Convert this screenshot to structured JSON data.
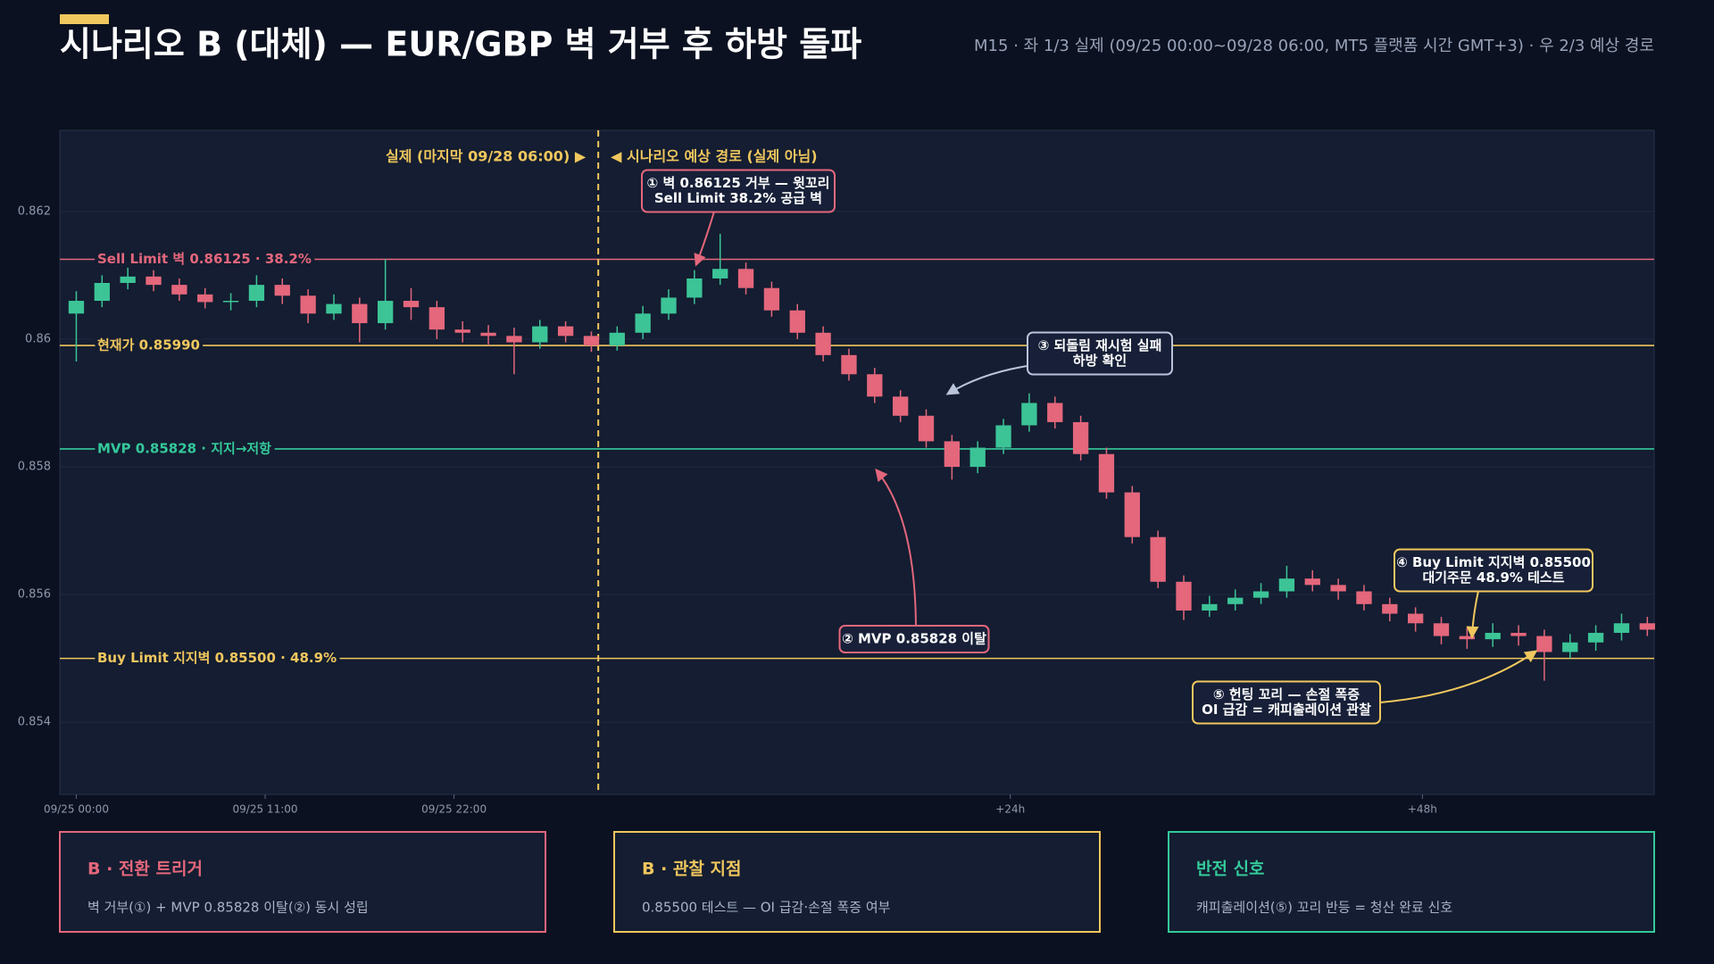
{
  "header": {
    "title": "시나리오 B (대체) — EUR/GBP 벽 거부 후 하방 돌파",
    "subtitle": "M15 · 좌 1/3 실제 (09/25 00:00~09/28 06:00, MT5 플랫폼 시간 GMT+3) · 우 2/3 예상 경로"
  },
  "chart_data": {
    "type": "candlestick",
    "x": [
      0,
      1.5,
      3,
      4.5,
      6,
      7.5,
      9,
      10.5,
      12,
      13.5,
      15,
      16.5,
      18,
      19.5,
      21,
      22.5,
      24,
      25.5,
      27,
      28.5,
      30,
      31.5,
      33,
      34.5,
      36,
      37.5,
      39,
      40.5,
      42,
      43.5,
      45,
      46.5,
      48,
      49.5,
      51,
      52.5,
      54,
      55.5,
      57,
      58.5,
      60,
      61.5,
      63,
      64.5,
      66,
      67.5,
      69,
      70.5,
      72,
      73.5,
      75,
      76.5,
      78,
      79.5,
      81,
      82.5,
      84,
      85.5,
      87,
      88.5,
      90,
      91.5
    ],
    "open": [
      0.8604,
      0.8606,
      0.86088,
      0.86098,
      0.86085,
      0.8607,
      0.86058,
      0.8606,
      0.86085,
      0.86068,
      0.8604,
      0.86055,
      0.86025,
      0.8606,
      0.8605,
      0.86015,
      0.8601,
      0.86005,
      0.85995,
      0.8602,
      0.86005,
      0.8599,
      0.8601,
      0.8604,
      0.86065,
      0.86095,
      0.8611,
      0.8608,
      0.86045,
      0.8601,
      0.85975,
      0.85945,
      0.8591,
      0.8588,
      0.8584,
      0.858,
      0.8583,
      0.85865,
      0.859,
      0.8587,
      0.8582,
      0.8576,
      0.8569,
      0.8562,
      0.85575,
      0.85585,
      0.85595,
      0.85605,
      0.85625,
      0.85615,
      0.85605,
      0.85585,
      0.8557,
      0.85555,
      0.85535,
      0.8553,
      0.8554,
      0.85535,
      0.8551,
      0.85525,
      0.8554,
      0.85555
    ],
    "high": [
      0.86075,
      0.861,
      0.86112,
      0.86108,
      0.86095,
      0.8608,
      0.86072,
      0.861,
      0.86095,
      0.86078,
      0.8607,
      0.86065,
      0.86125,
      0.8608,
      0.8606,
      0.86028,
      0.86022,
      0.86018,
      0.8603,
      0.86028,
      0.86012,
      0.8602,
      0.86052,
      0.86078,
      0.86108,
      0.86165,
      0.8612,
      0.8609,
      0.86055,
      0.8602,
      0.85985,
      0.85955,
      0.8592,
      0.8589,
      0.8585,
      0.8584,
      0.85875,
      0.85915,
      0.8591,
      0.8588,
      0.8583,
      0.8577,
      0.857,
      0.8563,
      0.85598,
      0.85608,
      0.85618,
      0.85645,
      0.85638,
      0.85625,
      0.85615,
      0.85595,
      0.8558,
      0.85565,
      0.85548,
      0.85555,
      0.85552,
      0.85545,
      0.85538,
      0.85552,
      0.8557,
      0.85565
    ],
    "low": [
      0.85965,
      0.8605,
      0.86078,
      0.86075,
      0.8606,
      0.86048,
      0.86045,
      0.8605,
      0.86055,
      0.86025,
      0.8603,
      0.85995,
      0.86015,
      0.8603,
      0.86,
      0.85995,
      0.8599,
      0.85945,
      0.85985,
      0.85995,
      0.8598,
      0.85982,
      0.86,
      0.8603,
      0.86055,
      0.86085,
      0.8607,
      0.86035,
      0.86,
      0.85965,
      0.85935,
      0.859,
      0.8587,
      0.8583,
      0.8578,
      0.8579,
      0.8582,
      0.85855,
      0.8586,
      0.8581,
      0.8575,
      0.8568,
      0.8561,
      0.8556,
      0.85565,
      0.85575,
      0.85585,
      0.85595,
      0.85605,
      0.85592,
      0.85575,
      0.85558,
      0.85542,
      0.85522,
      0.85515,
      0.85518,
      0.8552,
      0.85465,
      0.855,
      0.85512,
      0.85528,
      0.85535
    ],
    "close": [
      0.8606,
      0.86088,
      0.86098,
      0.86085,
      0.8607,
      0.86058,
      0.8606,
      0.86085,
      0.86068,
      0.8604,
      0.86055,
      0.86025,
      0.8606,
      0.8605,
      0.86015,
      0.8601,
      0.86005,
      0.85995,
      0.8602,
      0.86005,
      0.8599,
      0.8601,
      0.8604,
      0.86065,
      0.86095,
      0.8611,
      0.8608,
      0.86045,
      0.8601,
      0.85975,
      0.85945,
      0.8591,
      0.8588,
      0.8584,
      0.858,
      0.8583,
      0.85865,
      0.859,
      0.8587,
      0.8582,
      0.8576,
      0.8569,
      0.8562,
      0.85575,
      0.85585,
      0.85595,
      0.85605,
      0.85625,
      0.85615,
      0.85605,
      0.85585,
      0.8557,
      0.85555,
      0.85535,
      0.8553,
      0.8554,
      0.85535,
      0.8551,
      0.85525,
      0.8554,
      0.85555,
      0.85545
    ],
    "up_color": "#3cc497",
    "down_color": "#e4677c",
    "xlim": [
      -0.96,
      91.9
    ],
    "ylim": [
      0.85287,
      0.86327
    ],
    "xticks": [
      {
        "value": 0,
        "label": "09/25 00:00"
      },
      {
        "value": 11,
        "label": "09/25 11:00"
      },
      {
        "value": 22,
        "label": "09/25 22:00"
      },
      {
        "value": 54.4,
        "label": "+24h"
      },
      {
        "value": 78.4,
        "label": "+48h"
      }
    ],
    "yticks": [
      0.854,
      0.856,
      0.858,
      0.86,
      0.862
    ],
    "grid": true,
    "divider": {
      "x": 30.4,
      "left_label": "실제 (마지막 09/28 06:00) ▶",
      "right_label": "◀ 시나리오 예상 경로 (실제 아님)",
      "color": "#f0c75e"
    },
    "levels": [
      {
        "label": "Sell Limit 벽 0.86125 · 38.2%",
        "value": 0.86125,
        "color": "#e4677c"
      },
      {
        "label": "현재가 0.85990",
        "value": 0.8599,
        "color": "#f0c75e"
      },
      {
        "label": "MVP 0.85828 · 지지→저항",
        "value": 0.85828,
        "color": "#34c99a"
      },
      {
        "label": "Buy Limit 지지벽 0.85500 · 48.9%",
        "value": 0.855,
        "color": "#f0c75e"
      }
    ],
    "annotations": [
      {
        "text": [
          "① 벽 0.86125 거부 — 윗꼬리",
          "Sell Limit 38.2% 공급 벽"
        ],
        "color": "#e4677c"
      },
      {
        "text": [
          "② MVP 0.85828 이탈"
        ],
        "color": "#e4677c"
      },
      {
        "text": [
          "③ 되돌림 재시험 실패",
          "하방 확인"
        ],
        "color": "#b9c3da"
      },
      {
        "text": [
          "④ Buy Limit 지지벽 0.85500",
          "대기주문 48.9% 테스트"
        ],
        "color": "#f0c75e"
      },
      {
        "text": [
          "⑤ 헌팅 꼬리 — 손절 폭증",
          "OI 급감 = 캐피출레이션 관찰"
        ],
        "color": "#f0c75e"
      }
    ]
  },
  "cards": [
    {
      "title": "B · 전환 트리거",
      "body": "벽 거부(①) + MVP 0.85828 이탈(②) 동시 성립",
      "color": "#e4677c"
    },
    {
      "title": "B · 관찰 지점",
      "body": "0.85500 테스트 — OI 급감·손절 폭증 여부",
      "color": "#f0c75e"
    },
    {
      "title": "반전 신호",
      "body": "캐피출레이션(⑤) 꼬리 반등 = 청산 완료 신호",
      "color": "#34c99a"
    }
  ]
}
